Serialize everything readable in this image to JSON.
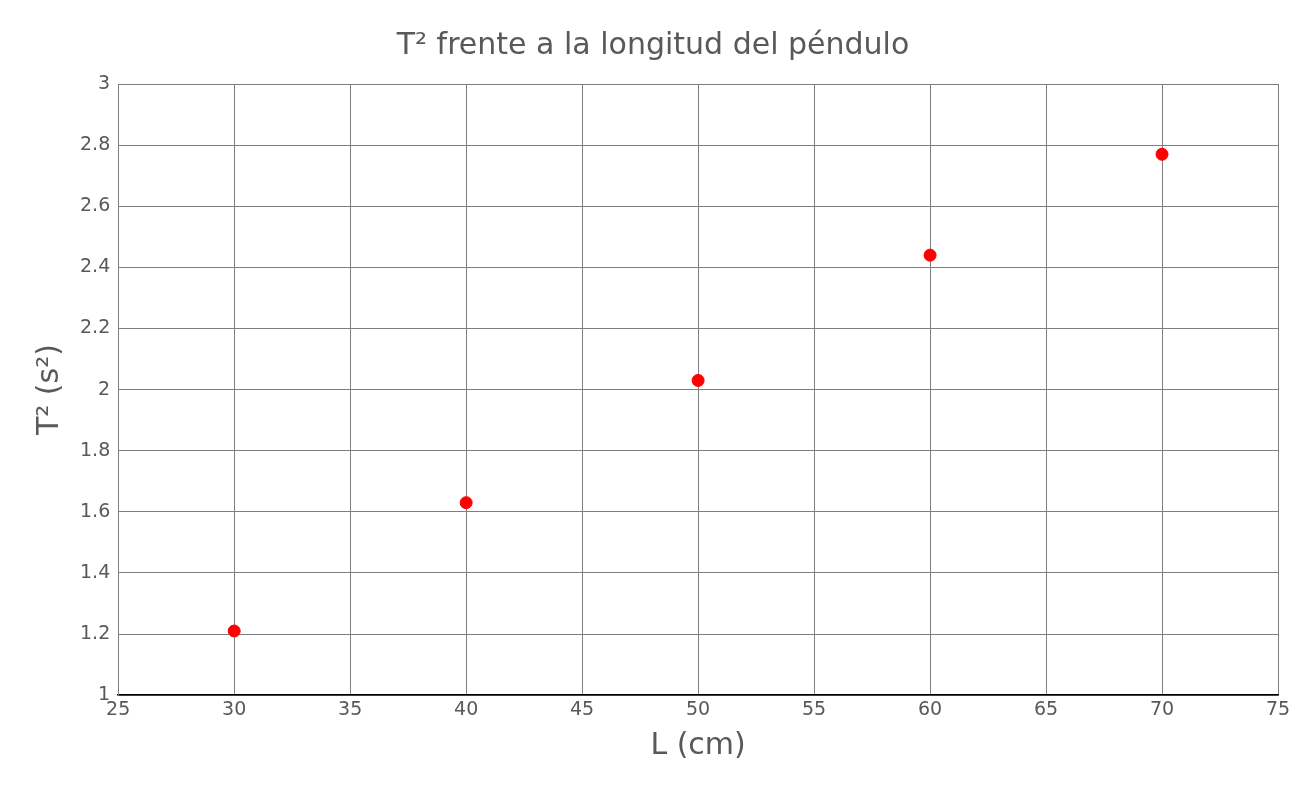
{
  "chart_data": {
    "type": "scatter",
    "title": "T² frente a la longitud del péndulo",
    "xlabel": "L (cm)",
    "ylabel": "T² (s²)",
    "x": [
      30,
      40,
      50,
      60,
      70
    ],
    "series": [
      {
        "color": "#ff0000",
        "values": [
          1.21,
          1.63,
          2.03,
          2.44,
          2.77
        ]
      }
    ],
    "xlim": [
      25,
      75
    ],
    "xticks": [
      25,
      30,
      35,
      40,
      45,
      50,
      55,
      60,
      65,
      70,
      75
    ],
    "ylim": [
      1,
      3
    ],
    "yticks": [
      1,
      1.2,
      1.4,
      1.6,
      1.8,
      2,
      2.2,
      2.4,
      2.6,
      2.8,
      3
    ],
    "grid": true,
    "marker": "circle",
    "legend": false
  }
}
